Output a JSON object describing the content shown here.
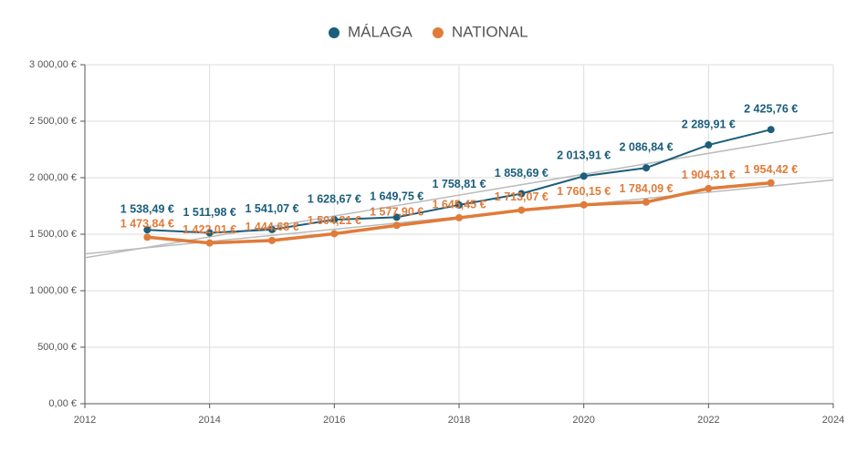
{
  "chart_data": {
    "type": "line",
    "x": [
      2013,
      2014,
      2015,
      2016,
      2017,
      2018,
      2019,
      2020,
      2021,
      2022,
      2023
    ],
    "series": [
      {
        "name": "MÁLAGA",
        "color": "#1b5e7b",
        "values": [
          1538.49,
          1511.98,
          1541.07,
          1628.67,
          1649.75,
          1758.81,
          1858.69,
          2013.91,
          2086.84,
          2289.91,
          2425.76
        ],
        "value_labels": [
          "1 538,49 €",
          "1 511,98 €",
          "1 541,07 €",
          "1 628,67 €",
          "1 649,75 €",
          "1 758,81 €",
          "1 858,69 €",
          "2 013,91 €",
          "2 086,84 €",
          "2 289,91 €",
          "2 425,76 €"
        ]
      },
      {
        "name": "NATIONAL",
        "color": "#e07b39",
        "values": [
          1473.84,
          1422.01,
          1444.68,
          1504.21,
          1577.9,
          1645.45,
          1713.07,
          1760.15,
          1784.09,
          1904.31,
          1954.42
        ],
        "value_labels": [
          "1 473,84 €",
          "1 422,01 €",
          "1 444,68 €",
          "1 504,21 €",
          "1 577,90 €",
          "1 645,45 €",
          "1 713,07 €",
          "1 760,15 €",
          "1 784,09 €",
          "1 904,31 €",
          "1 954,42 €"
        ]
      }
    ],
    "xlim": [
      2012,
      2024
    ],
    "xticks": [
      2012,
      2014,
      2016,
      2018,
      2020,
      2022,
      2024
    ],
    "ylim": [
      0,
      3000
    ],
    "yticks": [
      {
        "value": 0,
        "label": "0,00 €"
      },
      {
        "value": 500,
        "label": "500,00 €"
      },
      {
        "value": 1000,
        "label": "1 000,00 €"
      },
      {
        "value": 1500,
        "label": "1 500,00 €"
      },
      {
        "value": 2000,
        "label": "2 000,00 €"
      },
      {
        "value": 2500,
        "label": "2 500,00 €"
      },
      {
        "value": 3000,
        "label": "3 000,00 €"
      }
    ],
    "grid": true,
    "legend": "top"
  }
}
